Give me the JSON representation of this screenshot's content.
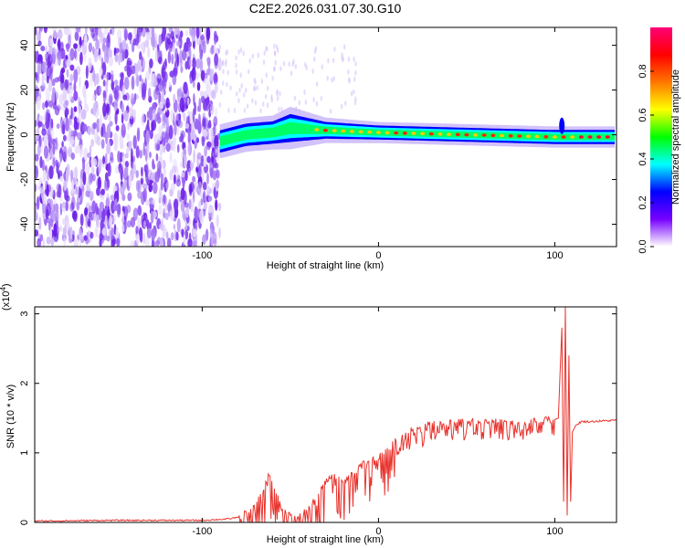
{
  "title": "C2E2.2026.031.07.30.G10",
  "chart_data": [
    {
      "type": "heatmap",
      "title": "C2E2.2026.031.07.30.G10",
      "xlabel": "Height of straight line (km)",
      "ylabel": "Frequency (Hz)",
      "xlim": [
        -195,
        135
      ],
      "ylim": [
        -50,
        48
      ],
      "x_ticks": [
        -100,
        0,
        100
      ],
      "y_ticks": [
        -40,
        -20,
        0,
        20,
        40
      ],
      "colorbar": {
        "label": "Normalized spectral amplitude",
        "range": [
          0,
          1
        ],
        "ticks": [
          "0.0",
          "0.2",
          "0.4",
          "0.6",
          "0.8"
        ],
        "colors": [
          "#ffffff",
          "#7700ff",
          "#0000ff",
          "#00ffff",
          "#00ff00",
          "#ffff00",
          "#ff7700",
          "#ff0000",
          "#ff0077"
        ]
      },
      "noise_region_x": [
        -195,
        -90
      ],
      "signal_band": [
        {
          "x": -90,
          "center_hz": -3,
          "half_width_hz": 4
        },
        {
          "x": -75,
          "center_hz": 0,
          "half_width_hz": 4
        },
        {
          "x": -60,
          "center_hz": 1,
          "half_width_hz": 4
        },
        {
          "x": -50,
          "center_hz": 3,
          "half_width_hz": 5
        },
        {
          "x": -30,
          "center_hz": 2,
          "half_width_hz": 3
        },
        {
          "x": 0,
          "center_hz": 1,
          "half_width_hz": 2.5
        },
        {
          "x": 50,
          "center_hz": 0,
          "half_width_hz": 2.5
        },
        {
          "x": 100,
          "center_hz": -1,
          "half_width_hz": 2.5
        },
        {
          "x": 135,
          "center_hz": -1,
          "half_width_hz": 2.5
        }
      ]
    },
    {
      "type": "line",
      "xlabel": "Height of straight line (km)",
      "ylabel": "SNR (10 * v/v)",
      "y_multiplier": "(x10",
      "y_multiplier_exp": "4",
      "y_multiplier_close": ")",
      "xlim": [
        -195,
        135
      ],
      "ylim": [
        0,
        3.1
      ],
      "x_ticks": [
        -100,
        0,
        100
      ],
      "y_ticks": [
        0,
        1,
        2,
        3
      ],
      "line_color": "#e8322c",
      "series": [
        {
          "name": "SNR",
          "x": [
            -195,
            -150,
            -100,
            -85,
            -75,
            -70,
            -62,
            -58,
            -55,
            -50,
            -45,
            -40,
            -35,
            -30,
            -25,
            -20,
            -15,
            -10,
            -5,
            0,
            5,
            10,
            15,
            20,
            30,
            40,
            50,
            60,
            70,
            80,
            90,
            97,
            102,
            104,
            105,
            106,
            107,
            108,
            109,
            110,
            112,
            115,
            120,
            135
          ],
          "y": [
            0.02,
            0.03,
            0.03,
            0.05,
            0.1,
            0.2,
            0.65,
            0.4,
            0.15,
            0.1,
            0.05,
            0.15,
            0.35,
            0.55,
            0.65,
            0.55,
            0.65,
            0.8,
            0.85,
            0.9,
            1.0,
            1.15,
            1.25,
            1.3,
            1.38,
            1.4,
            1.42,
            1.42,
            1.42,
            1.4,
            1.43,
            1.45,
            1.5,
            2.8,
            0.3,
            3.1,
            0.1,
            2.4,
            0.3,
            1.3,
            1.4,
            1.45,
            1.45,
            1.47
          ]
        }
      ]
    }
  ]
}
